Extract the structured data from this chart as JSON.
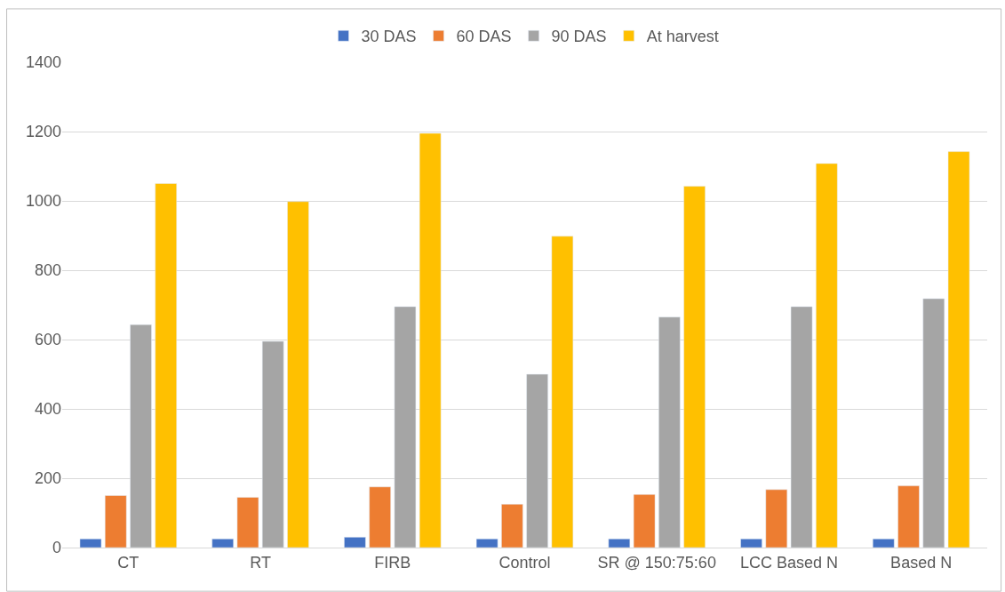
{
  "chart_data": {
    "type": "bar",
    "categories": [
      "CT",
      "RT",
      "FIRB",
      "Control",
      "SR @ 150:75:60",
      "LCC Based N",
      "Based N"
    ],
    "series": [
      {
        "name": "30 DAS",
        "color": "#4472c4",
        "values": [
          25,
          25,
          30,
          25,
          25,
          25,
          25
        ]
      },
      {
        "name": "60 DAS",
        "color": "#ed7d31",
        "values": [
          150,
          145,
          175,
          125,
          153,
          167,
          178
        ]
      },
      {
        "name": "90 DAS",
        "color": "#a5a5a5",
        "values": [
          643,
          595,
          695,
          500,
          665,
          695,
          718
        ]
      },
      {
        "name": "At harvest",
        "color": "#ffc000",
        "values": [
          1050,
          998,
          1195,
          898,
          1042,
          1108,
          1142
        ]
      }
    ],
    "ylim": [
      0,
      1400
    ],
    "yticks": [
      0,
      200,
      400,
      600,
      800,
      1000,
      1200,
      1400
    ],
    "grid": "y",
    "legend": "top"
  }
}
